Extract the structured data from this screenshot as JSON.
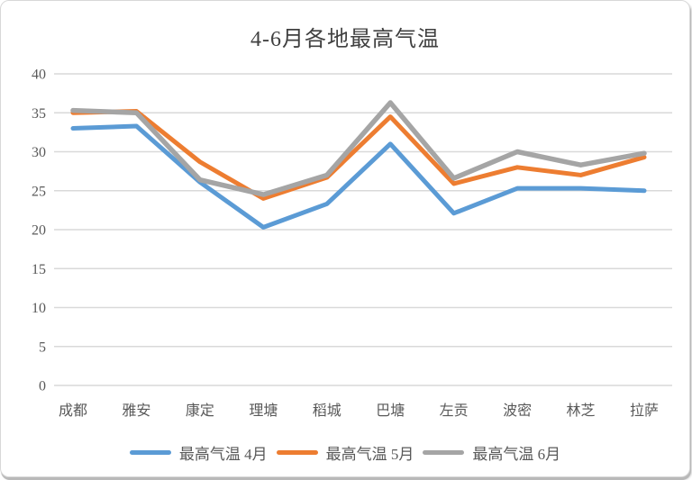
{
  "window": {
    "background": "#ffffff",
    "frame_border": "#d8d8d8"
  },
  "chart_data": {
    "type": "line",
    "title": "4-6月各地最高气温",
    "categories": [
      "成都",
      "雅安",
      "康定",
      "理塘",
      "稻城",
      "巴塘",
      "左贡",
      "波密",
      "林芝",
      "拉萨"
    ],
    "series": [
      {
        "name": "最高气温 4月",
        "color": "#5B9BD5",
        "values": [
          33.0,
          33.3,
          26.1,
          20.3,
          23.3,
          31.0,
          22.1,
          25.3,
          25.3,
          25.0
        ]
      },
      {
        "name": "最高气温 5月",
        "color": "#ED7D31",
        "values": [
          35.0,
          35.2,
          28.7,
          24.0,
          26.7,
          34.5,
          25.9,
          28.0,
          27.0,
          29.3
        ]
      },
      {
        "name": "最高气温 6月",
        "color": "#A5A5A5",
        "values": [
          35.3,
          35.0,
          26.4,
          24.5,
          27.0,
          36.3,
          26.6,
          30.0,
          28.3,
          29.8
        ]
      }
    ],
    "xlabel": "",
    "ylabel": "",
    "ylim": [
      0,
      40
    ],
    "ytick_step": 5,
    "yticks": [
      0,
      5,
      10,
      15,
      20,
      25,
      30,
      35,
      40
    ],
    "grid": "horizontal",
    "gridline_color": "#D9D9D9",
    "legend_position": "bottom",
    "text_color": "#595959",
    "title_color": "#404040"
  }
}
